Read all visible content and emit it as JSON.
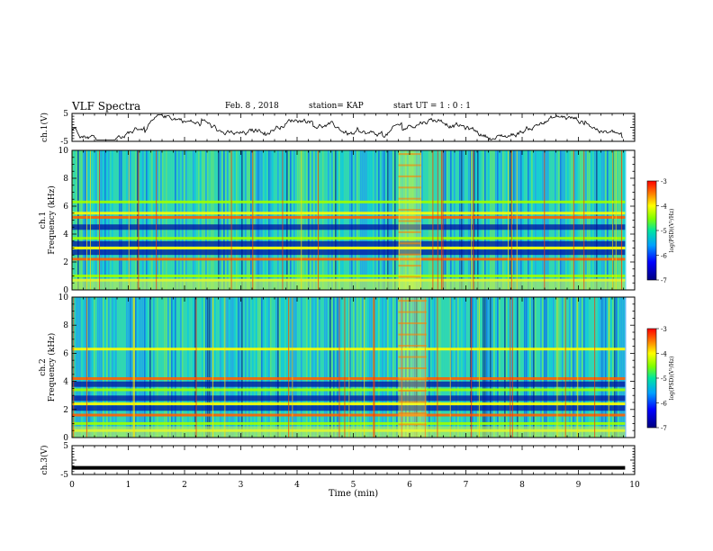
{
  "header": {
    "title": "VLF Spectra",
    "date": "Feb. 8 , 2018",
    "station": "station= KAP",
    "start": "start UT = 1 : 0 : 1"
  },
  "chart_data": [
    {
      "type": "line",
      "panel": "ch1-waveform",
      "ylabel": "ch.1(V)",
      "ylim": [
        -5,
        5
      ],
      "yticks": [
        "5",
        "-5"
      ],
      "xlim": [
        0,
        10
      ],
      "approx_level_V": 0,
      "approx_amplitude_V": 2.5
    },
    {
      "type": "heatmap",
      "panel": "ch1-spectrogram",
      "ylabel_channel": "ch.1",
      "ylabel": "Frequency (kHz)",
      "ylim": [
        0,
        10
      ],
      "yticks": [
        "0",
        "2",
        "4",
        "6",
        "8",
        "10"
      ],
      "xlim": [
        0,
        9.83
      ],
      "bands_kHz": [
        0.7,
        1.0,
        2.2,
        3.0,
        3.7,
        5.2,
        5.5,
        6.3
      ],
      "dark_bands_kHz": [
        2.7,
        3.3,
        4.5
      ],
      "event_min": [
        5.8,
        6.2
      ],
      "colorbar": {
        "label": "log(PSD)(V²/Hz)",
        "range": [
          -7,
          -3
        ],
        "ticks": [
          "-3",
          "-4",
          "-5",
          "-6",
          "-7"
        ]
      }
    },
    {
      "type": "heatmap",
      "panel": "ch2-spectrogram",
      "ylabel_channel": "ch.2",
      "ylabel": "Frequency (kHz)",
      "ylim": [
        0,
        10
      ],
      "yticks": [
        "0",
        "2",
        "4",
        "6",
        "8",
        "10"
      ],
      "xlim": [
        0,
        9.83
      ],
      "bands_kHz": [
        0.5,
        1.0,
        1.6,
        2.4,
        3.4,
        4.2,
        6.3
      ],
      "dark_bands_kHz": [
        2.1,
        2.8,
        3.8
      ],
      "event_min": [
        5.8,
        6.3
      ],
      "colorbar": {
        "label": "log(PSD)(V²/Hz)",
        "range": [
          -7,
          -3
        ],
        "ticks": [
          "-3",
          "-4",
          "-5",
          "-6",
          "-7"
        ]
      }
    },
    {
      "type": "line",
      "panel": "ch3-waveform",
      "ylabel": "ch.3(V)",
      "ylim": [
        -5,
        5
      ],
      "yticks": [
        "5",
        "-5"
      ],
      "xlim": [
        0,
        9.83
      ],
      "approx_level_V": -2.7
    }
  ],
  "x_axis": {
    "label": "Time (min)",
    "min": 0,
    "max": 10,
    "ticks": [
      "0",
      "1",
      "2",
      "3",
      "4",
      "5",
      "6",
      "7",
      "8",
      "9",
      "10"
    ]
  },
  "colors": {
    "low": "#00007f",
    "mid_low": "#0077ff",
    "mid": "#00e5a0",
    "mid_high": "#7fff00",
    "high": "#ffff00",
    "top": "#ff0000"
  }
}
